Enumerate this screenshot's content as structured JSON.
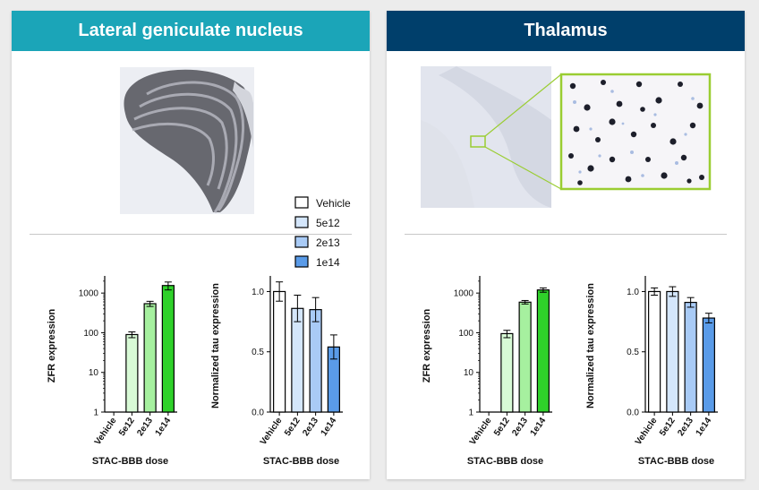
{
  "left": {
    "title": "Lateral geniculate nucleus"
  },
  "right": {
    "title": "Thalamus"
  },
  "legend": {
    "items": [
      {
        "label": "Vehicle",
        "color": "#ffffff"
      },
      {
        "label": "5e12",
        "color": "#d4e6fb"
      },
      {
        "label": "2e13",
        "color": "#a9cbf6"
      },
      {
        "label": "1e14",
        "color": "#5a9be8"
      }
    ]
  },
  "colors": {
    "zfr": [
      "#ffffff",
      "#d8fad6",
      "#a6f09f",
      "#2fd12a"
    ],
    "tau": [
      "#ffffff",
      "#d4e6fb",
      "#a9cbf6",
      "#5a9be8"
    ],
    "inset_border": "#9acd32"
  },
  "chart_data": [
    {
      "id": "lgn_zfr",
      "panel": "Lateral geniculate nucleus",
      "type": "bar",
      "scale": "log",
      "categories": [
        "Vehicle",
        "5e12",
        "2e13",
        "1e14"
      ],
      "values": [
        null,
        90,
        540,
        1550
      ],
      "errors": [
        null,
        15,
        80,
        350
      ],
      "ylabel": "ZFR expression",
      "xlabel": "STAC-BBB dose",
      "yticks": [
        "1",
        "10",
        "100",
        "1000"
      ],
      "ylim": [
        1,
        2200
      ]
    },
    {
      "id": "lgn_tau",
      "panel": "Lateral geniculate nucleus",
      "type": "bar",
      "categories": [
        "Vehicle",
        "5e12",
        "2e13",
        "1e14"
      ],
      "values": [
        1.0,
        0.86,
        0.85,
        0.54
      ],
      "errors": [
        0.08,
        0.11,
        0.1,
        0.1
      ],
      "ylabel": "Normalized tau expression",
      "xlabel": "STAC-BBB dose",
      "yticks": [
        "0.0",
        "0.5",
        "1.0"
      ],
      "ylim": [
        0,
        1.1
      ]
    },
    {
      "id": "thal_zfr",
      "panel": "Thalamus",
      "type": "bar",
      "scale": "log",
      "categories": [
        "Vehicle",
        "5e12",
        "2e13",
        "1e14"
      ],
      "values": [
        null,
        95,
        590,
        1200
      ],
      "errors": [
        null,
        20,
        60,
        150
      ],
      "ylabel": "ZFR expression",
      "xlabel": "STAC-BBB dose",
      "yticks": [
        "1",
        "10",
        "100",
        "1000"
      ],
      "ylim": [
        1,
        2200
      ]
    },
    {
      "id": "thal_tau",
      "panel": "Thalamus",
      "type": "bar",
      "categories": [
        "Vehicle",
        "5e12",
        "2e13",
        "1e14"
      ],
      "values": [
        1.0,
        1.0,
        0.91,
        0.78
      ],
      "errors": [
        0.03,
        0.04,
        0.04,
        0.04
      ],
      "ylabel": "Normalized tau expression",
      "xlabel": "STAC-BBB dose",
      "yticks": [
        "0.0",
        "0.5",
        "1.0"
      ],
      "ylim": [
        0,
        1.1
      ]
    }
  ]
}
